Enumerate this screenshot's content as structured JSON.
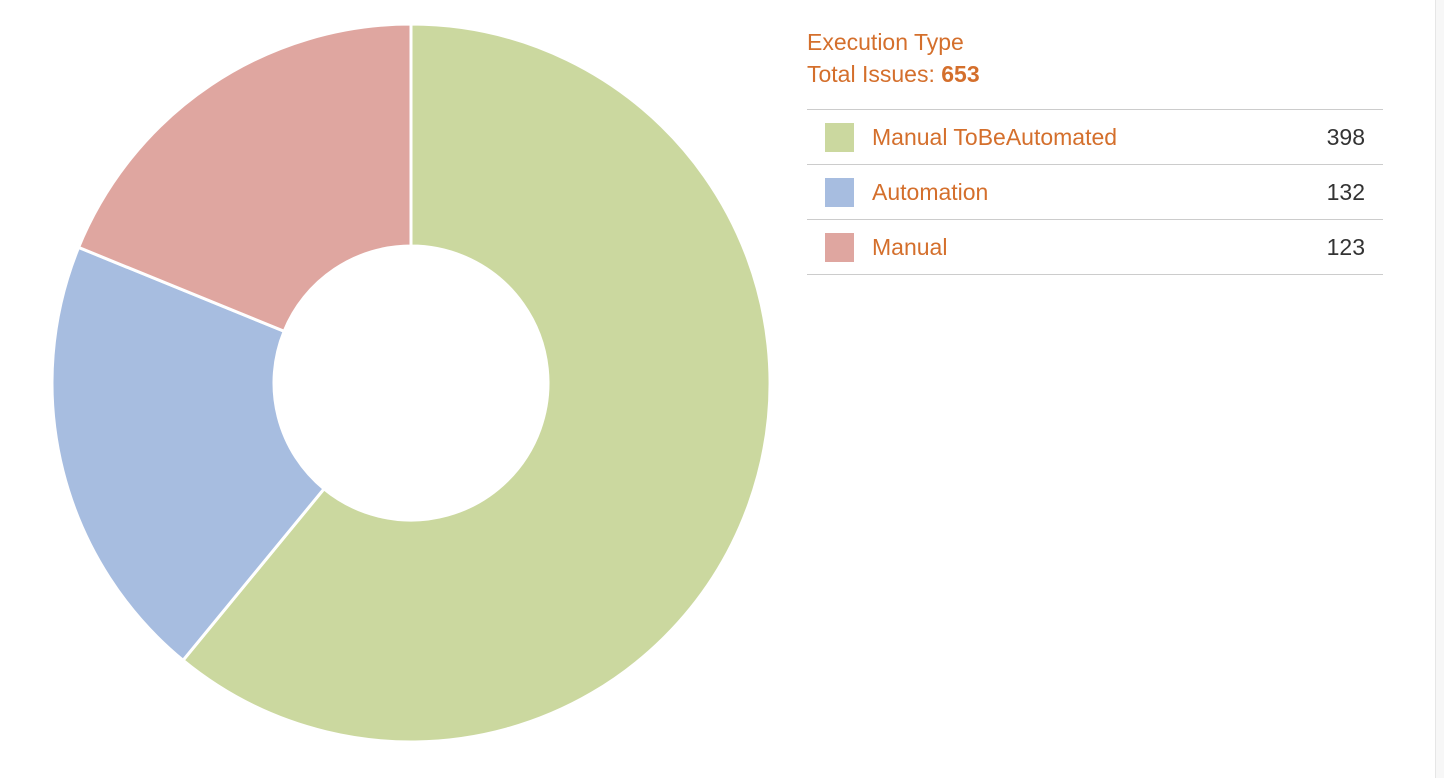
{
  "chart_data": {
    "type": "pie",
    "title": "Execution Type",
    "total_label": "Total Issues:",
    "total_value": "653",
    "categories": [
      "Manual ToBeAutomated",
      "Automation",
      "Manual"
    ],
    "values": [
      398,
      132,
      123
    ],
    "colors": [
      "#cbd89f",
      "#a7bde0",
      "#dfa6a0"
    ],
    "legend_position": "right"
  }
}
